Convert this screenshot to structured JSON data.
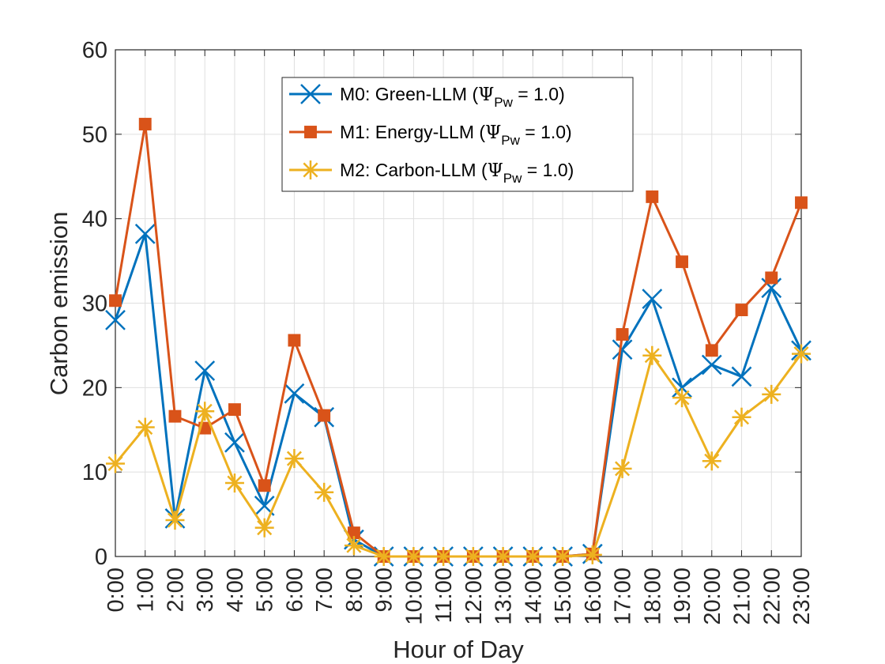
{
  "chart_data": {
    "type": "line",
    "xlabel": "Hour of Day",
    "ylabel": "Carbon emission",
    "ylim": [
      0,
      60
    ],
    "yticks": [
      0,
      10,
      20,
      30,
      40,
      50,
      60
    ],
    "grid": true,
    "legend_position": "top-center",
    "categories": [
      "0:00",
      "1:00",
      "2:00",
      "3:00",
      "4:00",
      "5:00",
      "6:00",
      "7:00",
      "8:00",
      "9:00",
      "10:00",
      "11:00",
      "12:00",
      "13:00",
      "14:00",
      "15:00",
      "16:00",
      "17:00",
      "18:00",
      "19:00",
      "20:00",
      "21:00",
      "22:00",
      "23:00"
    ],
    "series": [
      {
        "name": "M0: Green-LLM (",
        "legend_parts": {
          "prefix": "M0: Green-LLM (",
          "symbol": "Ψ",
          "sub": "Pw",
          "suffix": " = 1.0)"
        },
        "color": "#0072BD",
        "marker": "x",
        "values": [
          28.0,
          38.2,
          4.5,
          22.0,
          13.5,
          6.0,
          19.3,
          16.5,
          2.0,
          0,
          0,
          0,
          0,
          0,
          0,
          0,
          0.3,
          24.5,
          30.5,
          20.0,
          22.7,
          21.3,
          31.8,
          24.4
        ]
      },
      {
        "name": "M1: Energy-LLM (",
        "legend_parts": {
          "prefix": "M1: Energy-LLM (",
          "symbol": "Ψ",
          "sub": "Pw",
          "suffix": " = 1.0)"
        },
        "color": "#D95319",
        "marker": "square",
        "values": [
          30.3,
          51.2,
          16.6,
          15.2,
          17.4,
          8.4,
          25.6,
          16.7,
          2.8,
          0,
          0,
          0,
          0,
          0,
          0,
          0,
          0.3,
          26.3,
          42.6,
          34.9,
          24.4,
          29.2,
          33.0,
          41.9
        ]
      },
      {
        "name": "M2: Carbon-LLM (",
        "legend_parts": {
          "prefix": "M2: Carbon-LLM (",
          "symbol": "Ψ",
          "sub": "Pw",
          "suffix": " = 1.0)"
        },
        "color": "#EDB120",
        "marker": "asterisk",
        "values": [
          11.0,
          15.3,
          4.3,
          17.2,
          8.7,
          3.4,
          11.6,
          7.6,
          1.3,
          0,
          0,
          0,
          0,
          0,
          0,
          0,
          0.2,
          10.4,
          23.8,
          18.8,
          11.3,
          16.5,
          19.2,
          24.0
        ]
      }
    ]
  }
}
